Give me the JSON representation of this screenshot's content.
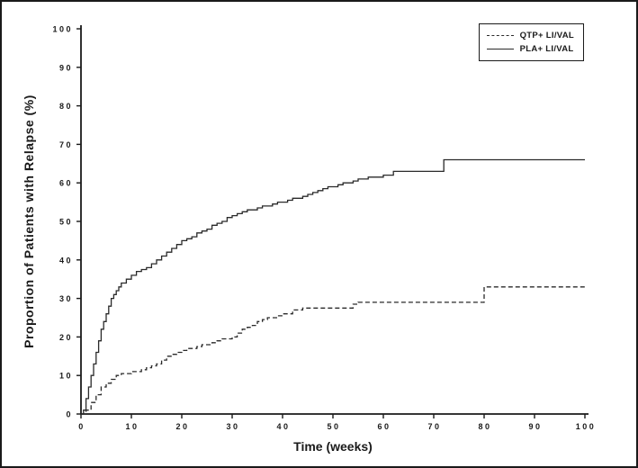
{
  "chart_data": {
    "type": "line",
    "subtype": "kaplan-meier-step",
    "title": "",
    "xlabel": "Time (weeks)",
    "ylabel": "Proportion of Patients with Relapse (%)",
    "xlim": [
      0,
      100
    ],
    "ylim": [
      0,
      100
    ],
    "xticks": [
      0,
      10,
      20,
      30,
      40,
      50,
      60,
      70,
      80,
      90,
      100
    ],
    "yticks": [
      0,
      10,
      20,
      30,
      40,
      50,
      60,
      70,
      80,
      90,
      100
    ],
    "grid": false,
    "legend_position": "top-right",
    "series": [
      {
        "name": "QTP+ LI/VAL",
        "line_style": "dashed",
        "color": "#2a2a2a",
        "points": [
          [
            0,
            0
          ],
          [
            1,
            1
          ],
          [
            2,
            3
          ],
          [
            3,
            5
          ],
          [
            4,
            7
          ],
          [
            5,
            8
          ],
          [
            6,
            9
          ],
          [
            7,
            10
          ],
          [
            8,
            10.5
          ],
          [
            10,
            11
          ],
          [
            12,
            11.5
          ],
          [
            13,
            12
          ],
          [
            14,
            12.5
          ],
          [
            15,
            13
          ],
          [
            16,
            14
          ],
          [
            17,
            15
          ],
          [
            18,
            15.5
          ],
          [
            19,
            16
          ],
          [
            20,
            16.5
          ],
          [
            21,
            17
          ],
          [
            23,
            17.5
          ],
          [
            24,
            18
          ],
          [
            26,
            18.5
          ],
          [
            27,
            19
          ],
          [
            28,
            19.5
          ],
          [
            30,
            20
          ],
          [
            31,
            21
          ],
          [
            32,
            22
          ],
          [
            33,
            22.5
          ],
          [
            34,
            23
          ],
          [
            35,
            24
          ],
          [
            36,
            24.5
          ],
          [
            37,
            25
          ],
          [
            39,
            25.5
          ],
          [
            40,
            26
          ],
          [
            42,
            27
          ],
          [
            44,
            27.5
          ],
          [
            54,
            28.5
          ],
          [
            55,
            29
          ],
          [
            80,
            33
          ],
          [
            100,
            33
          ]
        ]
      },
      {
        "name": "PLA+ LI/VAL",
        "line_style": "solid",
        "color": "#2a2a2a",
        "points": [
          [
            0,
            0
          ],
          [
            0.5,
            1
          ],
          [
            1,
            4
          ],
          [
            1.5,
            7
          ],
          [
            2,
            10
          ],
          [
            2.5,
            13
          ],
          [
            3,
            16
          ],
          [
            3.5,
            19
          ],
          [
            4,
            22
          ],
          [
            4.5,
            24
          ],
          [
            5,
            26
          ],
          [
            5.5,
            28
          ],
          [
            6,
            30
          ],
          [
            6.5,
            31
          ],
          [
            7,
            32
          ],
          [
            7.5,
            33
          ],
          [
            8,
            34
          ],
          [
            9,
            35
          ],
          [
            10,
            36
          ],
          [
            11,
            37
          ],
          [
            12,
            37.5
          ],
          [
            13,
            38
          ],
          [
            14,
            39
          ],
          [
            15,
            40
          ],
          [
            16,
            41
          ],
          [
            17,
            42
          ],
          [
            18,
            43
          ],
          [
            19,
            44
          ],
          [
            20,
            45
          ],
          [
            21,
            45.5
          ],
          [
            22,
            46
          ],
          [
            23,
            47
          ],
          [
            24,
            47.5
          ],
          [
            25,
            48
          ],
          [
            26,
            49
          ],
          [
            27,
            49.5
          ],
          [
            28,
            50
          ],
          [
            29,
            51
          ],
          [
            30,
            51.5
          ],
          [
            31,
            52
          ],
          [
            32,
            52.5
          ],
          [
            33,
            53
          ],
          [
            35,
            53.5
          ],
          [
            36,
            54
          ],
          [
            38,
            54.5
          ],
          [
            39,
            55
          ],
          [
            41,
            55.5
          ],
          [
            42,
            56
          ],
          [
            44,
            56.5
          ],
          [
            45,
            57
          ],
          [
            46,
            57.5
          ],
          [
            47,
            58
          ],
          [
            48,
            58.5
          ],
          [
            49,
            59
          ],
          [
            51,
            59.5
          ],
          [
            52,
            60
          ],
          [
            54,
            60.5
          ],
          [
            55,
            61
          ],
          [
            57,
            61.5
          ],
          [
            60,
            62
          ],
          [
            62,
            63
          ],
          [
            72,
            66
          ],
          [
            100,
            66
          ]
        ]
      }
    ]
  },
  "colors": {
    "line": "#2a2a2a",
    "axis": "#1a1a1a",
    "background": "#ffffff"
  }
}
